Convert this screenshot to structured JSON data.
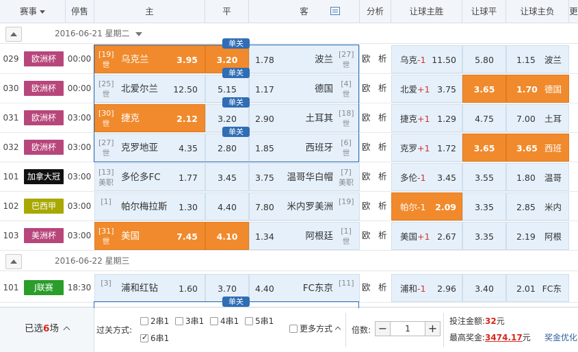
{
  "header": {
    "event": "赛事",
    "stop": "停售",
    "home": "主",
    "draw": "平",
    "away": "客",
    "analysis": "分析",
    "h_win": "让球主胜",
    "h_draw": "让球平",
    "h_lose": "让球主负",
    "more": "更"
  },
  "dates": [
    {
      "text": "2016-06-21 星期二"
    },
    {
      "text": "2016-06-22 星期三"
    }
  ],
  "colors": {
    "selected": "#f08a2c",
    "cell": "#e6f0fa",
    "accent": "#2f6db5"
  },
  "matches": [
    {
      "no": "029",
      "league": "欧洲杯",
      "league_color": "#b7467b",
      "time": "00:00",
      "home_rank": "[19]\n世",
      "home": "乌克兰",
      "home_odd": "3.95",
      "draw_odd": "3.20",
      "away_odd": "1.78",
      "away": "波兰",
      "away_rank": "[27]\n世",
      "ou": "欧",
      "xi": "析",
      "h_team": "乌克",
      "h_sign": "-1",
      "h_odd": "11.50",
      "hd_odd": "5.80",
      "hl_odd": "1.15",
      "hl_team": "波兰",
      "badge": "单关"
    },
    {
      "no": "030",
      "league": "欧洲杯",
      "league_color": "#b7467b",
      "time": "00:00",
      "home_rank": "[25]\n世",
      "home": "北爱尔兰",
      "home_odd": "12.50",
      "draw_odd": "5.15",
      "away_odd": "1.17",
      "away": "德国",
      "away_rank": "[4]\n世",
      "ou": "欧",
      "xi": "析",
      "h_team": "北爱",
      "h_sign": "+1",
      "h_odd": "3.75",
      "hd_odd": "3.65",
      "hl_odd": "1.70",
      "hl_team": "德国",
      "badge": "单关"
    },
    {
      "no": "031",
      "league": "欧洲杯",
      "league_color": "#b7467b",
      "time": "03:00",
      "home_rank": "[30]\n世",
      "home": "捷克",
      "home_odd": "2.12",
      "draw_odd": "3.20",
      "away_odd": "2.90",
      "away": "土耳其",
      "away_rank": "[18]\n世",
      "ou": "欧",
      "xi": "析",
      "h_team": "捷克",
      "h_sign": "+1",
      "h_odd": "1.29",
      "hd_odd": "4.75",
      "hl_odd": "7.00",
      "hl_team": "土耳",
      "badge": "单关"
    },
    {
      "no": "032",
      "league": "欧洲杯",
      "league_color": "#b7467b",
      "time": "03:00",
      "home_rank": "[27]\n世",
      "home": "克罗地亚",
      "home_odd": "4.35",
      "draw_odd": "2.80",
      "away_odd": "1.85",
      "away": "西班牙",
      "away_rank": "[6]\n世",
      "ou": "欧",
      "xi": "析",
      "h_team": "克罗",
      "h_sign": "+1",
      "h_odd": "1.72",
      "hd_odd": "3.65",
      "hl_odd": "3.65",
      "hl_team": "西班",
      "badge": "单关"
    },
    {
      "no": "101",
      "league": "加拿大冠",
      "league_color": "#111111",
      "time": "03:00",
      "home_rank": "[13]\n美职",
      "home": "多伦多FC",
      "home_odd": "1.77",
      "draw_odd": "3.45",
      "away_odd": "3.75",
      "away": "温哥华白帽",
      "away_rank": "[7]\n美职",
      "ou": "欧",
      "xi": "析",
      "h_team": "多伦",
      "h_sign": "-1",
      "h_odd": "3.45",
      "hd_odd": "3.55",
      "hl_odd": "1.80",
      "hl_team": "温哥",
      "badge": ""
    },
    {
      "no": "102",
      "league": "巴西甲",
      "league_color": "#a8a800",
      "time": "03:00",
      "home_rank": "[1]",
      "home": "帕尔梅拉斯",
      "home_odd": "1.30",
      "draw_odd": "4.40",
      "away_odd": "7.80",
      "away": "米内罗美洲",
      "away_rank": "[19]",
      "ou": "欧",
      "xi": "析",
      "h_team": "帕尔",
      "h_sign": "-1",
      "h_odd": "2.09",
      "hd_odd": "3.35",
      "hl_odd": "2.85",
      "hl_team": "米内",
      "badge": ""
    },
    {
      "no": "103",
      "league": "美洲杯",
      "league_color": "#b7467b",
      "time": "03:00",
      "home_rank": "[31]\n世",
      "home": "美国",
      "home_odd": "7.45",
      "draw_odd": "4.10",
      "away_odd": "1.34",
      "away": "阿根廷",
      "away_rank": "[1]\n世",
      "ou": "欧",
      "xi": "析",
      "h_team": "美国",
      "h_sign": "+1",
      "h_odd": "2.67",
      "hd_odd": "3.35",
      "hl_odd": "2.19",
      "hl_team": "阿根",
      "badge": ""
    },
    {
      "no": "101",
      "league": "J联赛",
      "league_color": "#2a9d2a",
      "time": "18:30",
      "home_rank": "[3]",
      "home": "浦和红钻",
      "home_odd": "1.60",
      "draw_odd": "3.70",
      "away_odd": "4.40",
      "away": "FC东京",
      "away_rank": "[11]",
      "ou": "欧",
      "xi": "析",
      "h_team": "浦和",
      "h_sign": "-1",
      "h_odd": "2.96",
      "hd_odd": "3.40",
      "hl_odd": "2.01",
      "hl_team": "FC东",
      "badge": ""
    }
  ],
  "extra_badge": "单关",
  "footer": {
    "selected_pre": "已选",
    "selected_count": "6",
    "selected_post": "场",
    "pass_label": "过关方式:",
    "opts": [
      "2串1",
      "3串1",
      "4串1",
      "5串1",
      "6串1"
    ],
    "more_label": "更多方式",
    "multiple_label": "倍数:",
    "multiple": "1",
    "minus": "−",
    "plus": "+",
    "amount_label": "投注金额:",
    "amount": "32",
    "amount_unit": "元",
    "prize_label": "最高奖金:",
    "prize": "3474.17",
    "prize_unit": "元",
    "optimize": "奖金优化"
  }
}
